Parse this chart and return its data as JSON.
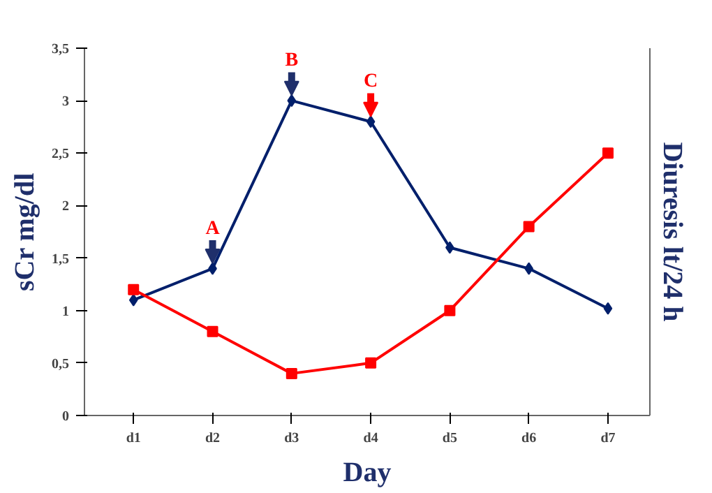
{
  "chart_data": {
    "type": "line",
    "xlabel": "Day",
    "ylabel": "sCr mg/dl",
    "y2label": "Diuresis lt/24 h",
    "categories": [
      "d1",
      "d2",
      "d3",
      "d4",
      "d5",
      "d6",
      "d7"
    ],
    "series": [
      {
        "color": "#001f6b",
        "marker": "diamond",
        "values": [
          1.1,
          1.4,
          3.0,
          2.8,
          1.6,
          1.4,
          1.02
        ]
      },
      {
        "color": "#ff0000",
        "marker": "square",
        "values": [
          1.2,
          0.8,
          0.4,
          0.5,
          1.0,
          1.8,
          2.5
        ]
      }
    ],
    "ylim": [
      0,
      3.5
    ],
    "yticks": [
      0,
      {
        "value": 0.5,
        "label": "0,5"
      },
      1,
      {
        "value": 1.5,
        "label": "1,5"
      },
      2,
      {
        "value": 2.5,
        "label": "2,5"
      },
      3,
      {
        "value": 3.5,
        "label": "3,5"
      }
    ],
    "grid": false,
    "annotations": [
      {
        "text": "A",
        "x": "d2",
        "y": 1.4
      },
      {
        "text": "B",
        "x": "d3",
        "y": 3.0
      },
      {
        "text": "C",
        "x": "d4",
        "y": 2.8
      }
    ]
  }
}
